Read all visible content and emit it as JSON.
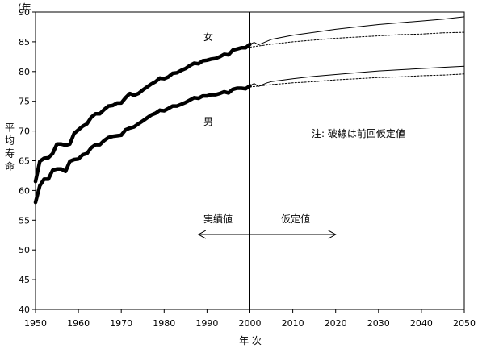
{
  "chart_data": {
    "type": "line",
    "title": "",
    "xlabel": "年 次",
    "ylabel": "平均寿命",
    "yunit": "(年",
    "xlim": [
      1950,
      2050
    ],
    "ylim": [
      40,
      90
    ],
    "xticks": [
      1950,
      1960,
      1970,
      1980,
      1990,
      2000,
      2010,
      2020,
      2030,
      2040,
      2050
    ],
    "yticks": [
      40,
      45,
      50,
      55,
      60,
      65,
      70,
      75,
      80,
      85,
      90
    ],
    "divider_x": 2000,
    "annotations": {
      "female_label": "女",
      "male_label": "男",
      "note": "注: 破線は前回仮定値",
      "actual_label": "実績値",
      "assumed_label": "仮定値",
      "arrow_from": 1988,
      "arrow_to": 2020,
      "arrow_y": 52.6
    },
    "series": [
      {
        "key": "female_actual",
        "style": "thick",
        "x": [
          1950,
          1951,
          1952,
          1953,
          1954,
          1955,
          1956,
          1957,
          1958,
          1959,
          1960,
          1961,
          1962,
          1963,
          1964,
          1965,
          1966,
          1967,
          1968,
          1969,
          1970,
          1971,
          1972,
          1973,
          1974,
          1975,
          1976,
          1977,
          1978,
          1979,
          1980,
          1981,
          1982,
          1983,
          1984,
          1985,
          1986,
          1987,
          1988,
          1989,
          1990,
          1991,
          1992,
          1993,
          1994,
          1995,
          1996,
          1997,
          1998,
          1999,
          2000
        ],
        "y": [
          61.5,
          64.9,
          65.4,
          65.5,
          66.2,
          67.8,
          67.8,
          67.6,
          67.8,
          69.6,
          70.2,
          70.8,
          71.2,
          72.3,
          72.9,
          72.9,
          73.6,
          74.2,
          74.3,
          74.7,
          74.7,
          75.6,
          76.3,
          76.0,
          76.3,
          76.9,
          77.4,
          77.9,
          78.3,
          78.9,
          78.8,
          79.1,
          79.7,
          79.8,
          80.2,
          80.5,
          81.0,
          81.4,
          81.3,
          81.8,
          81.9,
          82.1,
          82.2,
          82.5,
          82.9,
          82.8,
          83.6,
          83.8,
          84.0,
          84.0,
          84.6
        ]
      },
      {
        "key": "male_actual",
        "style": "thick",
        "x": [
          1950,
          1951,
          1952,
          1953,
          1954,
          1955,
          1956,
          1957,
          1958,
          1959,
          1960,
          1961,
          1962,
          1963,
          1964,
          1965,
          1966,
          1967,
          1968,
          1969,
          1970,
          1971,
          1972,
          1973,
          1974,
          1975,
          1976,
          1977,
          1978,
          1979,
          1980,
          1981,
          1982,
          1983,
          1984,
          1985,
          1986,
          1987,
          1988,
          1989,
          1990,
          1991,
          1992,
          1993,
          1994,
          1995,
          1996,
          1997,
          1998,
          1999,
          2000
        ],
        "y": [
          58.0,
          60.8,
          61.9,
          61.9,
          63.4,
          63.6,
          63.6,
          63.2,
          64.9,
          65.2,
          65.3,
          66.0,
          66.2,
          67.2,
          67.7,
          67.7,
          68.4,
          68.9,
          69.1,
          69.2,
          69.3,
          70.2,
          70.5,
          70.7,
          71.2,
          71.7,
          72.2,
          72.7,
          73.0,
          73.5,
          73.4,
          73.8,
          74.2,
          74.2,
          74.5,
          74.8,
          75.2,
          75.6,
          75.5,
          75.9,
          75.9,
          76.1,
          76.1,
          76.3,
          76.6,
          76.4,
          77.0,
          77.2,
          77.2,
          77.1,
          77.6
        ]
      },
      {
        "key": "female_projection",
        "style": "solid",
        "x": [
          2000,
          2001,
          2002,
          2003,
          2004,
          2005,
          2010,
          2015,
          2020,
          2025,
          2030,
          2035,
          2040,
          2045,
          2050
        ],
        "y": [
          84.6,
          84.9,
          84.5,
          84.8,
          85.1,
          85.4,
          86.1,
          86.6,
          87.1,
          87.5,
          87.9,
          88.2,
          88.5,
          88.8,
          89.2
        ]
      },
      {
        "key": "female_previous",
        "style": "dashed",
        "x": [
          2000,
          2005,
          2010,
          2015,
          2020,
          2025,
          2030,
          2035,
          2040,
          2045,
          2050
        ],
        "y": [
          84.1,
          84.6,
          85.0,
          85.3,
          85.6,
          85.8,
          86.0,
          86.2,
          86.3,
          86.5,
          86.6
        ]
      },
      {
        "key": "male_projection",
        "style": "solid",
        "x": [
          2000,
          2001,
          2002,
          2003,
          2004,
          2005,
          2010,
          2015,
          2020,
          2025,
          2030,
          2035,
          2040,
          2045,
          2050
        ],
        "y": [
          77.6,
          78.0,
          77.5,
          77.8,
          78.1,
          78.3,
          78.8,
          79.2,
          79.5,
          79.8,
          80.1,
          80.3,
          80.5,
          80.7,
          80.9
        ]
      },
      {
        "key": "male_previous",
        "style": "dashed",
        "x": [
          2000,
          2005,
          2010,
          2015,
          2020,
          2025,
          2030,
          2035,
          2040,
          2045,
          2050
        ],
        "y": [
          77.4,
          77.8,
          78.1,
          78.3,
          78.6,
          78.8,
          79.0,
          79.1,
          79.3,
          79.4,
          79.6
        ]
      }
    ]
  }
}
